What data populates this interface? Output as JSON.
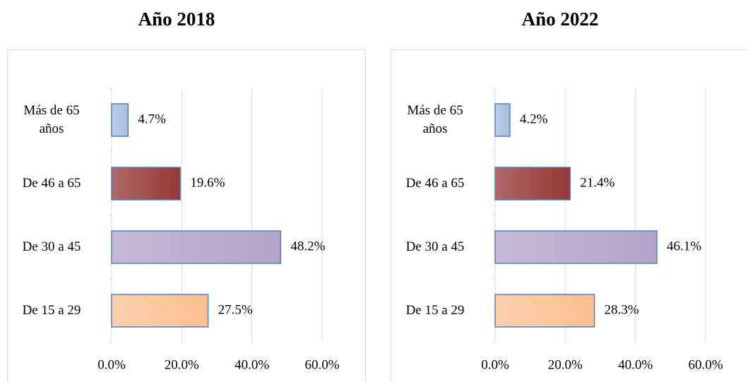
{
  "chart_data": [
    {
      "type": "bar",
      "orientation": "horizontal",
      "title": "Año 2018",
      "categories": [
        "Más de 65 años",
        "De 46 a 65",
        "De 30 a 45",
        "De 15 a 29"
      ],
      "values": [
        4.7,
        19.6,
        48.2,
        27.5
      ],
      "value_labels": [
        "4.7%",
        "19.6%",
        "48.2%",
        "27.5%"
      ],
      "colors": [
        "#a7bde0",
        "#953735",
        "#b3a2c7",
        "#fac090"
      ],
      "xlim": [
        0,
        60
      ],
      "xticks": [
        {
          "value": 0,
          "label": "0.0%"
        },
        {
          "value": 20,
          "label": "20.0%"
        },
        {
          "value": 40,
          "label": "40.0%"
        },
        {
          "value": 60,
          "label": "60.0%"
        }
      ],
      "grid": true
    },
    {
      "type": "bar",
      "orientation": "horizontal",
      "title": "Año 2022",
      "categories": [
        "Más de 65 años",
        "De 46 a 65",
        "De 30 a 45",
        "De 15 a 29"
      ],
      "values": [
        4.2,
        21.4,
        46.1,
        28.3
      ],
      "value_labels": [
        "4.2%",
        "21.4%",
        "46.1%",
        "28.3%"
      ],
      "colors": [
        "#a7bde0",
        "#953735",
        "#b3a2c7",
        "#fac090"
      ],
      "xlim": [
        0,
        60
      ],
      "xticks": [
        {
          "value": 0,
          "label": "0.0%"
        },
        {
          "value": 20,
          "label": "20.0%"
        },
        {
          "value": 40,
          "label": "40.0%"
        },
        {
          "value": 60,
          "label": "60.0%"
        }
      ],
      "grid": true
    }
  ]
}
